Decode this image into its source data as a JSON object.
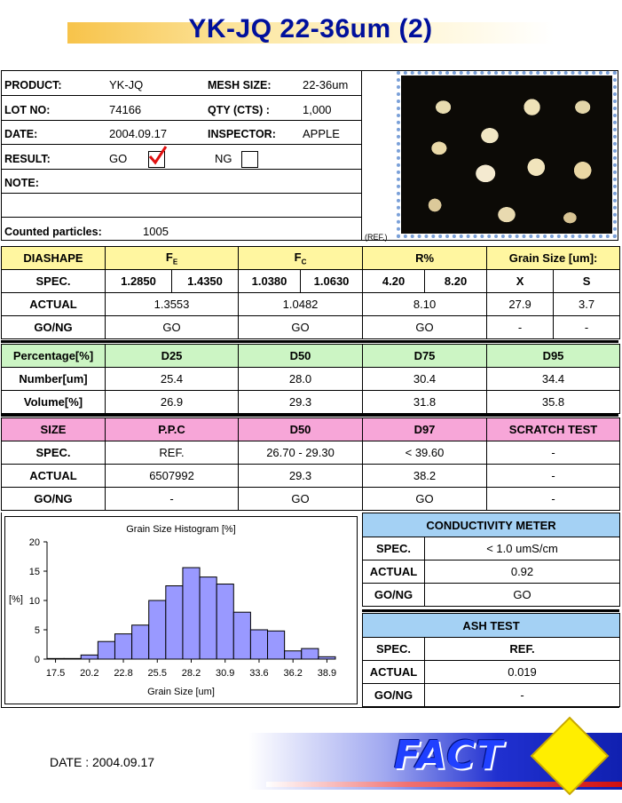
{
  "title": "YK-JQ 22-36um (2)",
  "info": {
    "product_label": "PRODUCT:",
    "product": "YK-JQ",
    "mesh_label": "MESH SIZE:",
    "mesh": "22-36um",
    "lot_label": "LOT NO:",
    "lot": "74166",
    "qty_label": "QTY (CTS) :",
    "qty": "1,000",
    "date_label": "DATE:",
    "date": "2004.09.17",
    "inspector_label": "INSPECTOR:",
    "inspector": "APPLE",
    "result_label": "RESULT:",
    "go": "GO",
    "ng": "NG",
    "note_label": "NOTE:",
    "counted_label": "Counted particles:",
    "counted": "1005",
    "ref": "(REF.)"
  },
  "shape_table": {
    "header": [
      "DIASHAPE",
      "F",
      "F",
      "R%",
      "Grain Size [um]:"
    ],
    "fe_sub": "E",
    "fc_sub": "C",
    "spec_label": "SPEC.",
    "spec": [
      "1.2850",
      "1.4350",
      "1.0380",
      "1.0630",
      "4.20",
      "8.20",
      "X",
      "S"
    ],
    "actual_label": "ACTUAL",
    "actual": [
      "1.3553",
      "1.0482",
      "8.10",
      "27.9",
      "3.7"
    ],
    "gong_label": "GO/NG",
    "gong": [
      "GO",
      "GO",
      "GO",
      "-",
      "-"
    ]
  },
  "pct_table": {
    "header": [
      "Percentage[%]",
      "D25",
      "D50",
      "D75",
      "D95"
    ],
    "number_label": "Number[um]",
    "number": [
      "25.4",
      "28.0",
      "30.4",
      "34.4"
    ],
    "volume_label": "Volume[%]",
    "volume": [
      "26.9",
      "29.3",
      "31.8",
      "35.8"
    ]
  },
  "size_table": {
    "header": [
      "SIZE",
      "P.P.C",
      "D50",
      "D97",
      "SCRATCH TEST"
    ],
    "spec_label": "SPEC.",
    "spec": [
      "REF.",
      "26.70 - 29.30",
      "< 39.60",
      "-"
    ],
    "actual_label": "ACTUAL",
    "actual": [
      "6507992",
      "29.3",
      "38.2",
      "-"
    ],
    "gong_label": "GO/NG",
    "gong": [
      "-",
      "GO",
      "GO",
      "-"
    ]
  },
  "conductivity": {
    "title": "CONDUCTIVITY METER",
    "spec_label": "SPEC.",
    "spec": "< 1.0 umS/cm",
    "actual_label": "ACTUAL",
    "actual": "0.92",
    "gong_label": "GO/NG",
    "gong": "GO"
  },
  "ash": {
    "title": "ASH TEST",
    "spec_label": "SPEC.",
    "spec": "REF.",
    "actual_label": "ACTUAL",
    "actual": "0.019",
    "gong_label": "GO/NG",
    "gong": "-"
  },
  "footer": {
    "date": "DATE : 2004.09.17",
    "logo": "FACT"
  },
  "colors": {
    "title": "#00109c",
    "bars": "#9999ff",
    "yellow": "#fff6a0",
    "green": "#ccf5c4",
    "pink": "#f7a6d8",
    "blue": "#a4d1f4"
  },
  "chart_data": {
    "type": "bar",
    "title": "Grain Size Histogram [%]",
    "xlabel": "Grain Size [um]",
    "ylabel": "[%]",
    "ylim": [
      0,
      20
    ],
    "yticks": [
      0,
      5,
      10,
      15,
      20
    ],
    "xtick_labels": [
      "17.5",
      "20.2",
      "22.8",
      "25.5",
      "28.2",
      "30.9",
      "33.6",
      "36.2",
      "38.9"
    ],
    "categories": [
      "17.5",
      "18.8",
      "20.2",
      "21.5",
      "22.8",
      "24.2",
      "25.5",
      "26.8",
      "28.2",
      "29.5",
      "30.9",
      "32.2",
      "33.6",
      "34.9",
      "36.2",
      "37.6",
      "38.9"
    ],
    "values": [
      0.1,
      0.1,
      0.7,
      3.0,
      4.3,
      5.8,
      10.0,
      12.5,
      15.6,
      14.0,
      12.8,
      8.0,
      5.0,
      4.8,
      1.4,
      1.8,
      0.4
    ],
    "grid": false,
    "legend": "none"
  }
}
